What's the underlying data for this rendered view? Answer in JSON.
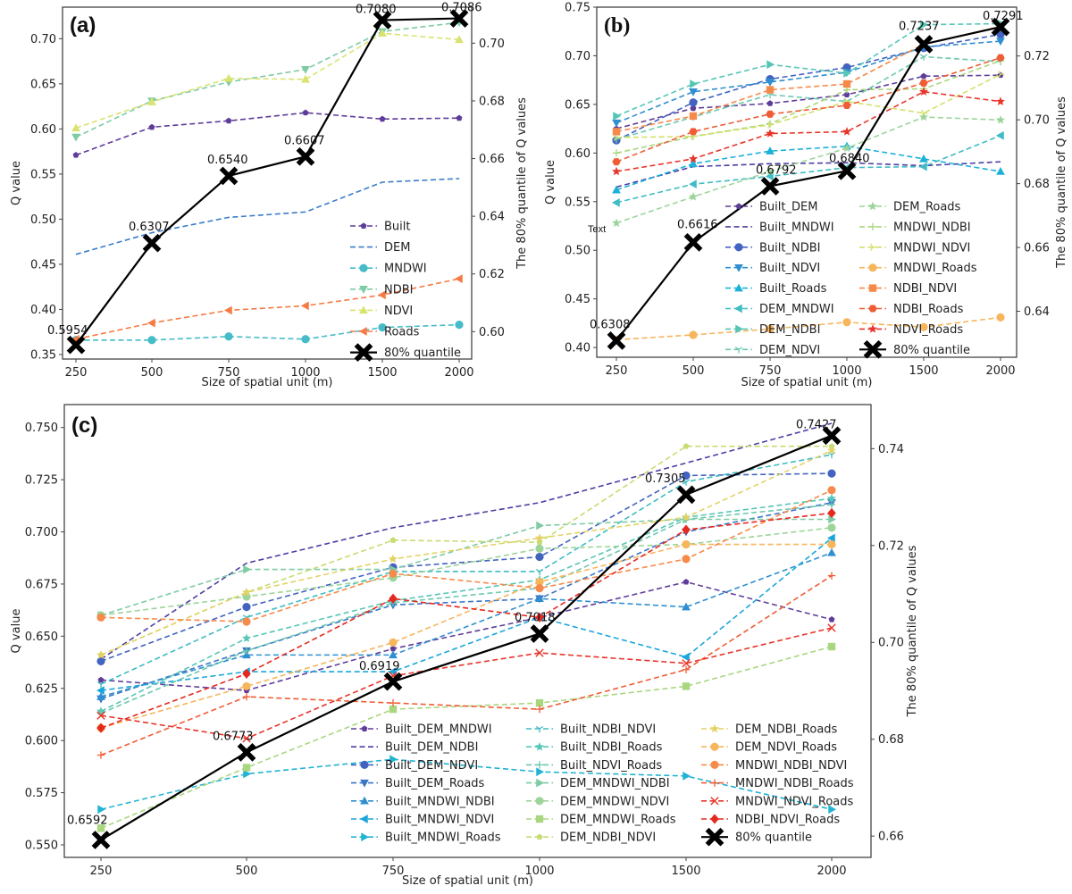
{
  "chart_data": [
    {
      "panel": "(a)",
      "type": "line",
      "xlabel": "Size of spatial unit (m)",
      "ylabel": "Q value",
      "ylabel_right": "The 80% quantile of Q values",
      "categories": [
        "250",
        "500",
        "750",
        "1000",
        "1500",
        "2000"
      ],
      "ylim": [
        0.345,
        0.735
      ],
      "yticks": [
        "0.35",
        "0.40",
        "0.45",
        "0.50",
        "0.55",
        "0.60",
        "0.65",
        "0.70"
      ],
      "ylim_right": [
        0.5905,
        0.7125
      ],
      "yticks_right": [
        "0.60",
        "0.62",
        "0.64",
        "0.66",
        "0.68",
        "0.70"
      ],
      "legend": "lower-right",
      "series": [
        {
          "name": "Built",
          "color": "#5e3c99",
          "marker": "pentagon",
          "values": [
            0.571,
            0.602,
            0.609,
            0.618,
            0.611,
            0.612
          ]
        },
        {
          "name": "DEM",
          "color": "#3a7dc9",
          "marker": "none",
          "values": [
            0.461,
            0.485,
            0.502,
            0.508,
            0.541,
            0.545
          ]
        },
        {
          "name": "MNDWI",
          "color": "#45bcc8",
          "marker": "circle",
          "values": [
            0.366,
            0.366,
            0.37,
            0.367,
            0.38,
            0.383
          ]
        },
        {
          "name": "NDBI",
          "color": "#7fcba4",
          "marker": "triangle-down",
          "values": [
            0.591,
            0.631,
            0.652,
            0.666,
            0.708,
            0.718
          ]
        },
        {
          "name": "NDVI",
          "color": "#d9e36f",
          "marker": "triangle-up",
          "values": [
            0.601,
            0.63,
            0.656,
            0.655,
            0.706,
            0.699
          ]
        },
        {
          "name": "Roads",
          "color": "#f57a45",
          "marker": "triangle-left",
          "values": [
            0.367,
            0.385,
            0.399,
            0.404,
            0.416,
            0.434
          ]
        }
      ],
      "quantile": {
        "name": "80% quantile",
        "color": "#000000",
        "values": [
          0.5954,
          0.6307,
          0.654,
          0.6607,
          0.708,
          0.7086
        ],
        "labels": [
          "0.5954",
          "0.6307",
          "0.6540",
          "0.6607",
          "0.7080",
          "0.7086"
        ]
      }
    },
    {
      "panel": "(b)",
      "type": "line",
      "xlabel": "Size of spatial unit (m)",
      "ylabel": "Q value",
      "ylabel_right": "The 80% quantile of Q values",
      "categories": [
        "250",
        "500",
        "750",
        "1000",
        "1500",
        "2000"
      ],
      "ylim": [
        0.39,
        0.75
      ],
      "yticks": [
        "0.40",
        "0.45",
        "0.50",
        "0.55",
        "0.60",
        "0.65",
        "0.70",
        "0.75"
      ],
      "ylim_right": [
        0.6256,
        0.7353
      ],
      "yticks_right": [
        "0.64",
        "0.66",
        "0.68",
        "0.70",
        "0.72"
      ],
      "annotation": "Text",
      "legend": "lower-right",
      "series": [
        {
          "name": "Built_DEM",
          "color": "#5e3c99",
          "marker": "pentagon",
          "values": [
            0.625,
            0.646,
            0.651,
            0.66,
            0.679,
            0.68
          ]
        },
        {
          "name": "Built_MNDWI",
          "color": "#4b3fa3",
          "marker": "none",
          "values": [
            0.565,
            0.586,
            0.589,
            0.59,
            0.587,
            0.591
          ]
        },
        {
          "name": "Built_NDBI",
          "color": "#4363c0",
          "marker": "circle",
          "values": [
            0.613,
            0.652,
            0.676,
            0.688,
            0.708,
            0.722
          ]
        },
        {
          "name": "Built_NDVI",
          "color": "#2f8fd0",
          "marker": "triangle-down",
          "values": [
            0.631,
            0.663,
            0.673,
            0.683,
            0.709,
            0.715
          ]
        },
        {
          "name": "Built_Roads",
          "color": "#1bb1d9",
          "marker": "triangle-up",
          "values": [
            0.562,
            0.589,
            0.602,
            0.607,
            0.594,
            0.581
          ]
        },
        {
          "name": "DEM_MNDWI",
          "color": "#3fbcc4",
          "marker": "triangle-left",
          "values": [
            0.549,
            0.568,
            0.576,
            0.585,
            0.586,
            0.618
          ]
        },
        {
          "name": "DEM_NDBI",
          "color": "#55c6b6",
          "marker": "triangle-right",
          "values": [
            0.638,
            0.671,
            0.691,
            0.682,
            0.732,
            0.733
          ]
        },
        {
          "name": "DEM_NDVI",
          "color": "#6cc9b0",
          "marker": "tri-down",
          "values": [
            0.614,
            0.637,
            0.66,
            0.653,
            0.699,
            0.694
          ]
        },
        {
          "name": "DEM_Roads",
          "color": "#9dd49a",
          "marker": "star",
          "values": [
            0.528,
            0.555,
            0.581,
            0.605,
            0.637,
            0.634
          ]
        },
        {
          "name": "MNDWI_NDBI",
          "color": "#a9d77f",
          "marker": "plus",
          "values": [
            0.6,
            0.617,
            0.63,
            0.665,
            0.666,
            0.695
          ]
        },
        {
          "name": "MNDWI_NDVI",
          "color": "#d4e06a",
          "marker": "tri-right",
          "values": [
            0.616,
            0.617,
            0.629,
            0.653,
            0.641,
            0.681
          ]
        },
        {
          "name": "MNDWI_Roads",
          "color": "#f7b55c",
          "marker": "circle",
          "values": [
            0.408,
            0.413,
            0.419,
            0.426,
            0.421,
            0.431
          ]
        },
        {
          "name": "NDBI_NDVI",
          "color": "#f68a4a",
          "marker": "square",
          "values": [
            0.622,
            0.638,
            0.665,
            0.671,
            0.712,
            0.73
          ]
        },
        {
          "name": "NDBI_Roads",
          "color": "#ef5d35",
          "marker": "hexagon",
          "values": [
            0.591,
            0.622,
            0.64,
            0.649,
            0.672,
            0.698
          ]
        },
        {
          "name": "NDVI_Roads",
          "color": "#e8352b",
          "marker": "star",
          "values": [
            0.581,
            0.594,
            0.62,
            0.622,
            0.663,
            0.653
          ]
        }
      ],
      "quantile": {
        "name": "80% quantile",
        "color": "#000000",
        "values": [
          0.6308,
          0.6616,
          0.6792,
          0.684,
          0.7237,
          0.7291
        ],
        "labels": [
          "0.6308",
          "0.6616",
          "0.6792",
          "0.6840",
          "0.7237",
          "0.7291"
        ]
      }
    },
    {
      "panel": "(c)",
      "type": "line",
      "xlabel": "Size of spatial unit (m)",
      "ylabel": "Q value",
      "ylabel_right": "The 80% quantile of Q values",
      "categories": [
        "250",
        "500",
        "750",
        "1000",
        "1500",
        "2000"
      ],
      "ylim": [
        0.544,
        0.761
      ],
      "yticks": [
        "0.550",
        "0.575",
        "0.600",
        "0.625",
        "0.650",
        "0.675",
        "0.700",
        "0.725",
        "0.750"
      ],
      "ylim_right": [
        0.6556,
        0.7491
      ],
      "yticks_right": [
        "0.66",
        "0.68",
        "0.70",
        "0.72",
        "0.74"
      ],
      "legend": "lower-right",
      "series": [
        {
          "name": "Built_DEM_MNDWI",
          "color": "#5e3c99",
          "marker": "pentagon",
          "values": [
            0.629,
            0.624,
            0.644,
            0.659,
            0.676,
            0.658
          ]
        },
        {
          "name": "Built_DEM_NDBI",
          "color": "#4b3fa3",
          "marker": "none",
          "values": [
            0.639,
            0.685,
            0.702,
            0.714,
            0.733,
            0.752
          ]
        },
        {
          "name": "Built_DEM_NDVI",
          "color": "#4363c0",
          "marker": "circle",
          "values": [
            0.638,
            0.664,
            0.683,
            0.688,
            0.727,
            0.728
          ]
        },
        {
          "name": "Built_DEM_Roads",
          "color": "#3a76c6",
          "marker": "triangle-down",
          "values": [
            0.62,
            0.643,
            0.665,
            0.668,
            0.7,
            0.714
          ]
        },
        {
          "name": "Built_MNDWI_NDBI",
          "color": "#2f8fd0",
          "marker": "triangle-up",
          "values": [
            0.621,
            0.641,
            0.641,
            0.668,
            0.664,
            0.69
          ]
        },
        {
          "name": "Built_MNDWI_NDVI",
          "color": "#1ba6db",
          "marker": "triangle-left",
          "values": [
            0.624,
            0.633,
            0.633,
            0.659,
            0.64,
            0.697
          ]
        },
        {
          "name": "Built_MNDWI_Roads",
          "color": "#22b3d3",
          "marker": "triangle-right",
          "values": [
            0.567,
            0.584,
            0.591,
            0.585,
            0.583,
            0.567
          ]
        },
        {
          "name": "Built_NDBI_NDVI",
          "color": "#3fbcc4",
          "marker": "tri-down",
          "values": [
            0.627,
            0.659,
            0.681,
            0.681,
            0.724,
            0.737
          ]
        },
        {
          "name": "Built_NDBI_Roads",
          "color": "#55c6b6",
          "marker": "star",
          "values": [
            0.614,
            0.649,
            0.667,
            0.677,
            0.707,
            0.716
          ]
        },
        {
          "name": "Built_NDVI_Roads",
          "color": "#6cc9b0",
          "marker": "plus",
          "values": [
            0.613,
            0.643,
            0.666,
            0.673,
            0.706,
            0.713
          ]
        },
        {
          "name": "DEM_MNDWI_NDBI",
          "color": "#7fcba4",
          "marker": "triangle-right",
          "values": [
            0.66,
            0.682,
            0.682,
            0.703,
            0.706,
            0.706
          ]
        },
        {
          "name": "DEM_MNDWI_NDVI",
          "color": "#9dd49a",
          "marker": "circle",
          "values": [
            0.66,
            0.669,
            0.678,
            0.692,
            0.694,
            0.702
          ]
        },
        {
          "name": "DEM_MNDWI_Roads",
          "color": "#a9d77f",
          "marker": "square",
          "values": [
            0.558,
            0.587,
            0.615,
            0.618,
            0.626,
            0.645
          ]
        },
        {
          "name": "DEM_NDBI_NDVI",
          "color": "#c5dd72",
          "marker": "pentagon",
          "values": [
            0.641,
            0.671,
            0.696,
            0.695,
            0.741,
            0.741
          ]
        },
        {
          "name": "DEM_NDBI_Roads",
          "color": "#e3d266",
          "marker": "star",
          "values": [
            0.641,
            0.671,
            0.687,
            0.697,
            0.707,
            0.739
          ]
        },
        {
          "name": "DEM_NDVI_Roads",
          "color": "#f7b55c",
          "marker": "circle",
          "values": [
            0.606,
            0.626,
            0.647,
            0.676,
            0.694,
            0.694
          ]
        },
        {
          "name": "MNDWI_NDBI_NDVI",
          "color": "#f68a4a",
          "marker": "circle",
          "values": [
            0.659,
            0.657,
            0.68,
            0.673,
            0.687,
            0.72
          ]
        },
        {
          "name": "MNDWI_NDBI_Roads",
          "color": "#ef5d35",
          "marker": "plus",
          "values": [
            0.593,
            0.621,
            0.618,
            0.615,
            0.634,
            0.679
          ]
        },
        {
          "name": "MNDWI_NDVI_Roads",
          "color": "#e8352b",
          "marker": "x",
          "values": [
            0.612,
            0.601,
            0.631,
            0.642,
            0.637,
            0.654
          ]
        },
        {
          "name": "NDBI_NDVI_Roads",
          "color": "#e6281e",
          "marker": "diamond",
          "values": [
            0.606,
            0.632,
            0.668,
            0.659,
            0.701,
            0.709
          ]
        }
      ],
      "quantile": {
        "name": "80% quantile",
        "color": "#000000",
        "values": [
          0.6592,
          0.6773,
          0.6919,
          0.7018,
          0.7305,
          0.7427
        ],
        "labels": [
          "0.6592",
          "0.6773",
          "0.6919",
          "0.7018",
          "0.7305",
          "0.7427"
        ]
      }
    }
  ]
}
